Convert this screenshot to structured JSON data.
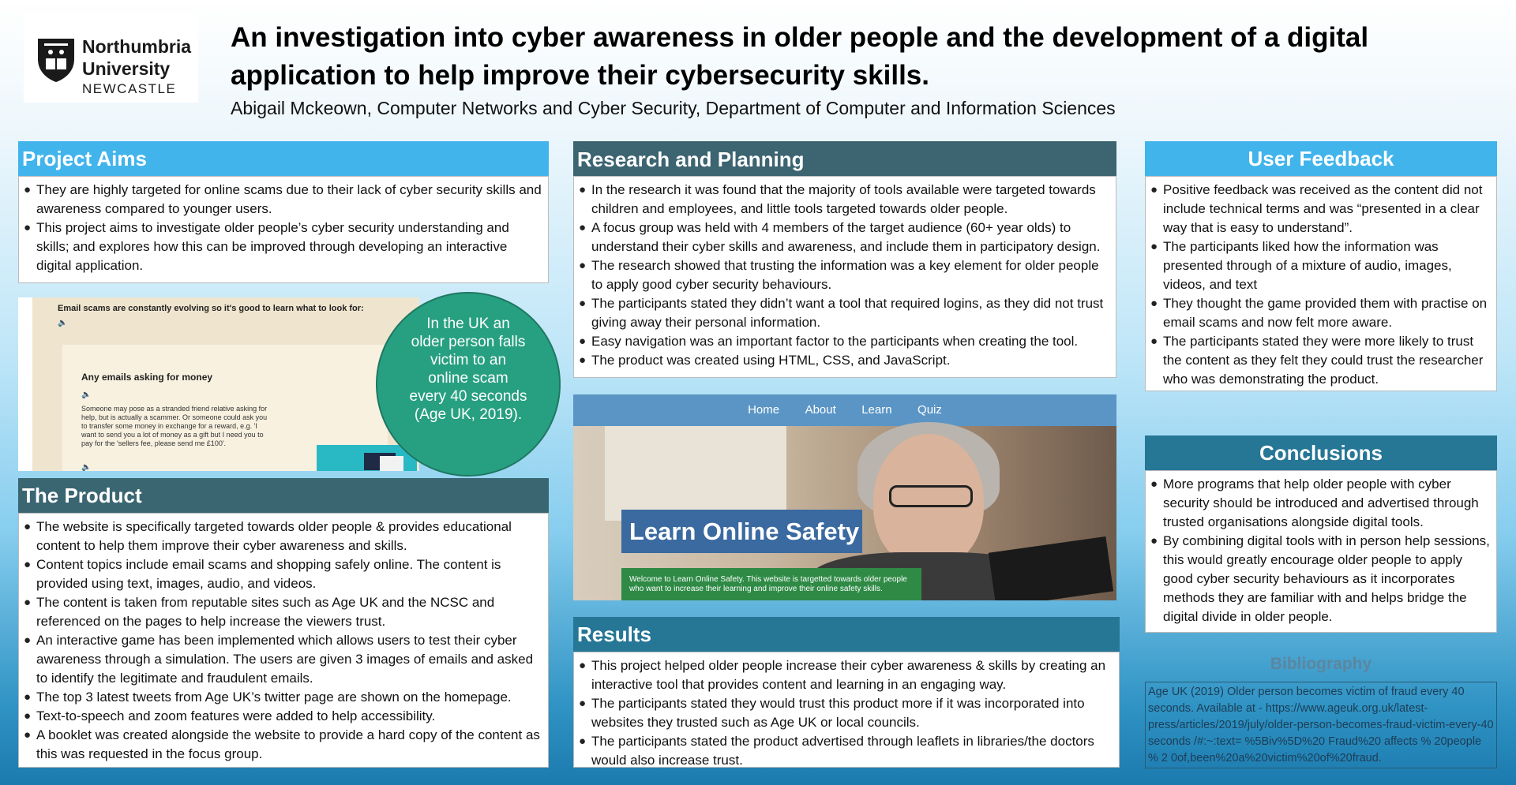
{
  "logo": {
    "line1": "Northumbria",
    "line2": "University",
    "line3": "NEWCASTLE"
  },
  "title": "An investigation into cyber awareness in older people and the development of a digital application to help improve their cybersecurity skills.",
  "subtitle": "Abigail Mckeown, Computer Networks and Cyber Security, Department of Computer and Information Sciences",
  "aims": {
    "heading": "Project Aims",
    "items": [
      "They are highly targeted for online scams due to their lack of cyber security skills and awareness compared to younger users.",
      "This project aims to investigate older people’s cyber security understanding and skills; and explores how this can be improved through developing an interactive digital application."
    ]
  },
  "email_screenshot": {
    "title": "Email scams are constantly evolving so it's good to learn what to look for:",
    "card_title": "Any emails asking for money",
    "card_text": "Someone may pose as a stranded friend relative asking for help, but is actually a scammer. Or someone could ask you to transfer some money in exchange for a reward, e.g. 'I want to send you a lot of money as a gift but I need you to pay for the 'sellers fee, please send me £100'.",
    "speaker_icon": "speaker-icon"
  },
  "circle": {
    "text": "In the UK an older person falls victim to an online scam every 40 seconds (Age UK, 2019)."
  },
  "product": {
    "heading": "The Product",
    "items": [
      "The website is specifically targeted towards older people & provides educational content to help them improve their cyber awareness and skills.",
      "Content topics include email scams and shopping safely online. The content is provided using text, images, audio, and videos.",
      "The content is taken from reputable sites such as Age UK and the NCSC and referenced on the pages to help increase the viewers trust.",
      "An interactive game has been implemented which allows users to test their cyber awareness through a simulation. The users are given 3 images of emails and asked to identify the legitimate and fraudulent emails.",
      "The top 3 latest tweets from Age UK’s twitter page are shown on the homepage.",
      "Text-to-speech and zoom features were added to help accessibility.",
      "A booklet was created alongside the website to provide a hard copy of the content as this was requested in the focus group."
    ]
  },
  "research": {
    "heading": "Research and Planning",
    "items": [
      "In the research it was found that the majority of tools available were targeted towards children and employees, and little tools targeted towards older people.",
      "A focus group was held with 4 members of the target audience (60+ year olds) to understand their cyber skills and awareness, and include them in participatory design.",
      "The research showed that trusting the information was a key element for older people to apply good cyber security behaviours.",
      "The participants stated they didn’t want a tool that required logins, as they did not trust giving away their personal information.",
      "Easy navigation was an important factor to the participants when creating the tool.",
      "The product was created using HTML, CSS, and JavaScript."
    ]
  },
  "website": {
    "nav": [
      "Home",
      "About",
      "Learn",
      "Quiz"
    ],
    "hero_title": "Learn Online Safety",
    "hero_text": "Welcome to Learn Online Safety. This website is targetted towards older people who want to increase their learning and improve their online safety skills."
  },
  "results": {
    "heading": "Results",
    "items": [
      "This project helped older people increase their cyber awareness & skills by creating an interactive tool that provides content and learning in an engaging way.",
      "The participants stated they would trust this product more if it was incorporated into websites they trusted such as Age UK or local councils.",
      "The participants stated the product advertised through leaflets in libraries/the doctors would also increase trust."
    ]
  },
  "feedback": {
    "heading": "User Feedback",
    "items": [
      "Positive feedback was received as the content did not include technical terms and was “presented in a  clear way that is easy to understand”.",
      "The participants liked how the information was presented through of a mixture of audio, images, videos, and text",
      "They thought the game provided them with practise on email scams and now felt more aware.",
      "The participants stated they were more likely to trust the content as they felt they could trust the researcher who was demonstrating the product."
    ]
  },
  "conclusions": {
    "heading": "Conclusions",
    "items": [
      "More programs that help older people with cyber security should be introduced and advertised through trusted organisations alongside digital tools.",
      "By combining digital tools with in person help sessions, this would greatly encourage older people to apply good cyber security behaviours as it incorporates methods they are familiar with and helps bridge the digital divide in older people."
    ]
  },
  "bibliography": {
    "heading": "Bibliography",
    "text": "Age UK (2019) Older person becomes victim of fraud every 40 seconds. Available at - https://www.ageuk.org.uk/latest-press/articles/2019/july/older-person-becomes-fraud-victim-every-40 seconds /#:~:text= %5Biv%5D%20 Fraud%20 affects % 20people % 2 0of,been%20a%20victim%20of%20fraud."
  },
  "colors": {
    "aims": "#41b4ec",
    "product": "#3a6672",
    "results": "#267696",
    "circle": "#27a081"
  }
}
